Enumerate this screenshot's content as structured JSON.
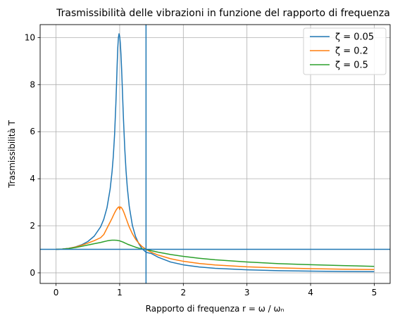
{
  "chart_data": {
    "type": "line",
    "title": "Trasmissibilità delle vibrazioni in funzione del rapporto di frequenza",
    "xlabel": "Rapporto di frequenza r = ω / ωₙ",
    "ylabel": "Trasmissibilità T",
    "xlim": [
      -0.25,
      5.25
    ],
    "ylim": [
      -0.45,
      10.55
    ],
    "xticks": [
      0,
      1,
      2,
      3,
      4,
      5
    ],
    "xtick_labels": [
      "0",
      "1",
      "2",
      "3",
      "4",
      "5"
    ],
    "yticks": [
      0,
      2,
      4,
      6,
      8,
      10
    ],
    "ytick_labels": [
      "0",
      "2",
      "4",
      "6",
      "8",
      "10"
    ],
    "grid": true,
    "legend_position": "top-right",
    "x": [
      0,
      0.1,
      0.2,
      0.3,
      0.4,
      0.5,
      0.6,
      0.7,
      0.75,
      0.8,
      0.85,
      0.88,
      0.9,
      0.92,
      0.94,
      0.95,
      0.96,
      0.97,
      0.98,
      0.99,
      1.0,
      1.01,
      1.02,
      1.03,
      1.04,
      1.05,
      1.06,
      1.08,
      1.1,
      1.12,
      1.15,
      1.2,
      1.25,
      1.3,
      1.35,
      1.414,
      1.5,
      1.6,
      1.8,
      2.0,
      2.25,
      2.5,
      3.0,
      3.5,
      4.0,
      4.5,
      5.0
    ],
    "series": [
      {
        "name": "ζ = 0.05",
        "color": "#1f77b4",
        "values": [
          1.0,
          1.01,
          1.042,
          1.099,
          1.19,
          1.332,
          1.56,
          1.954,
          2.276,
          2.76,
          3.558,
          4.295,
          4.96,
          5.89,
          7.18,
          7.976,
          8.814,
          9.56,
          10.0,
          10.16,
          10.05,
          9.76,
          9.29,
          8.68,
          7.97,
          7.22,
          6.5,
          5.27,
          4.33,
          3.62,
          2.83,
          2.01,
          1.54,
          1.24,
          1.03,
          0.873,
          0.819,
          0.67,
          0.46,
          0.34,
          0.248,
          0.194,
          0.128,
          0.092,
          0.072,
          0.058,
          0.049
        ]
      },
      {
        "name": "ζ = 0.2",
        "color": "#ff7f0e",
        "values": [
          1.0,
          1.01,
          1.041,
          1.094,
          1.169,
          1.263,
          1.369,
          1.493,
          1.628,
          1.893,
          2.158,
          2.317,
          2.436,
          2.55,
          2.652,
          2.695,
          2.733,
          2.764,
          2.789,
          2.806,
          2.69,
          2.8,
          2.79,
          2.76,
          2.72,
          2.67,
          2.61,
          2.47,
          2.32,
          2.17,
          1.95,
          1.66,
          1.43,
          1.26,
          1.12,
          1.0,
          0.87,
          0.76,
          0.6,
          0.49,
          0.399,
          0.336,
          0.257,
          0.21,
          0.178,
          0.156,
          0.139
        ]
      },
      {
        "name": "ζ = 0.5",
        "color": "#2ca02c",
        "values": [
          1.0,
          1.01,
          1.034,
          1.074,
          1.125,
          1.182,
          1.239,
          1.292,
          1.325,
          1.357,
          1.38,
          1.388,
          1.39,
          1.39,
          1.386,
          1.384,
          1.38,
          1.376,
          1.37,
          1.365,
          1.36,
          1.35,
          1.34,
          1.33,
          1.32,
          1.31,
          1.3,
          1.27,
          1.25,
          1.22,
          1.19,
          1.14,
          1.09,
          1.05,
          1.02,
          1.0,
          0.94,
          0.88,
          0.78,
          0.7,
          0.62,
          0.555,
          0.46,
          0.39,
          0.345,
          0.308,
          0.276
        ]
      }
    ],
    "reference_lines": [
      {
        "orientation": "horizontal",
        "value": 1,
        "color": "#1f77b4"
      },
      {
        "orientation": "vertical",
        "value": 1.414,
        "color": "#1f77b4"
      }
    ]
  }
}
